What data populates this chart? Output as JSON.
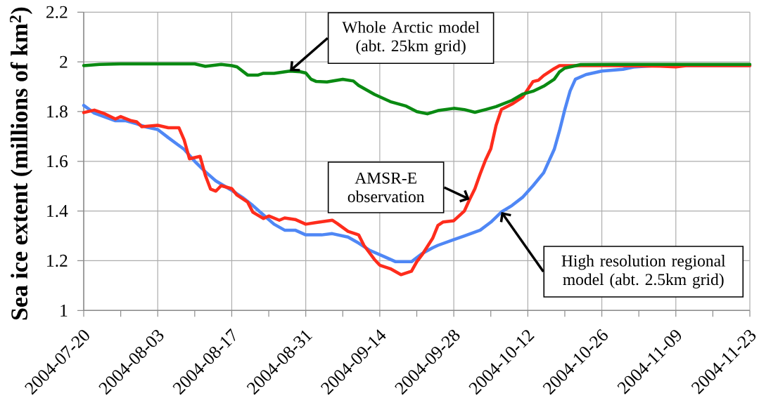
{
  "chart_data": {
    "type": "line",
    "ylabel": "Sea ice extent (millions of km$^{2}$)",
    "xlim": [
      "2004-07-20",
      "2004-11-23"
    ],
    "xticks": [
      "2004-07-20",
      {
        "value": "2004-07-27",
        "label": null
      },
      "2004-08-03",
      {
        "value": "2004-08-10",
        "label": null
      },
      "2004-08-17",
      {
        "value": "2004-08-24",
        "label": null
      },
      "2004-08-31",
      {
        "value": "2004-09-07",
        "label": null
      },
      "2004-09-14",
      {
        "value": "2004-09-21",
        "label": null
      },
      "2004-09-28",
      {
        "value": "2004-10-05",
        "label": null
      },
      "2004-10-12",
      {
        "value": "2004-10-19",
        "label": null
      },
      "2004-10-26",
      {
        "value": "2004-11-02",
        "label": null
      },
      "2004-11-09",
      {
        "value": "2004-11-16",
        "label": null
      },
      "2004-11-23"
    ],
    "ylim": [
      1,
      2.2
    ],
    "yticks": [
      1,
      1.2,
      1.4,
      1.6,
      1.8,
      2,
      2.2
    ],
    "grid": true,
    "series": [
      {
        "color": "#4f87f5",
        "x": [
          "2004-07-20",
          "2004-07-22",
          "2004-07-24",
          "2004-07-26",
          "2004-07-28",
          "2004-07-30",
          "2004-08-01",
          "2004-08-03",
          "2004-08-05",
          "2004-08-08",
          "2004-08-10",
          "2004-08-12",
          "2004-08-14",
          "2004-08-17",
          "2004-08-19",
          "2004-08-21",
          "2004-08-23",
          "2004-08-25",
          "2004-08-27",
          "2004-08-29",
          "2004-08-31",
          "2004-09-03",
          "2004-09-05",
          "2004-09-08",
          "2004-09-10",
          "2004-09-12",
          "2004-09-15",
          "2004-09-17",
          "2004-09-20",
          "2004-09-22",
          "2004-09-24",
          "2004-09-25",
          "2004-09-28",
          "2004-09-30",
          "2004-10-03",
          "2004-10-05",
          "2004-10-07",
          "2004-10-09",
          "2004-10-11",
          "2004-10-13",
          "2004-10-15",
          "2004-10-17",
          "2004-10-18",
          "2004-10-19",
          "2004-10-20",
          "2004-10-21",
          "2004-10-23",
          "2004-10-26",
          "2004-10-30",
          "2004-11-01",
          "2004-11-05",
          "2004-11-23"
        ],
        "values": [
          1.825,
          1.794,
          1.778,
          1.763,
          1.763,
          1.751,
          1.737,
          1.728,
          1.695,
          1.648,
          1.6,
          1.558,
          1.521,
          1.483,
          1.455,
          1.422,
          1.384,
          1.347,
          1.323,
          1.323,
          1.304,
          1.304,
          1.309,
          1.295,
          1.271,
          1.243,
          1.215,
          1.196,
          1.196,
          1.229,
          1.252,
          1.262,
          1.285,
          1.3,
          1.323,
          1.355,
          1.396,
          1.422,
          1.455,
          1.502,
          1.554,
          1.648,
          1.723,
          1.808,
          1.883,
          1.93,
          1.949,
          1.963,
          1.97,
          1.979,
          1.985,
          1.985
        ]
      },
      {
        "color": "#fe2c1c",
        "x": [
          "2004-07-20",
          "2004-07-22",
          "2004-07-24",
          "2004-07-26",
          "2004-07-27",
          "2004-07-29",
          "2004-07-30",
          "2004-07-31",
          "2004-08-03",
          "2004-08-05",
          "2004-08-07",
          "2004-08-08",
          "2004-08-09",
          "2004-08-11",
          "2004-08-12",
          "2004-08-13",
          "2004-08-14",
          "2004-08-15",
          "2004-08-17",
          "2004-08-18",
          "2004-08-20",
          "2004-08-21",
          "2004-08-23",
          "2004-08-24",
          "2004-08-26",
          "2004-08-27",
          "2004-08-29",
          "2004-08-31",
          "2004-09-02",
          "2004-09-05",
          "2004-09-06",
          "2004-09-08",
          "2004-09-10",
          "2004-09-11",
          "2004-09-13",
          "2004-09-14",
          "2004-09-16",
          "2004-09-18",
          "2004-09-20",
          "2004-09-21",
          "2004-09-22",
          "2004-09-24",
          "2004-09-25",
          "2004-09-26",
          "2004-09-28",
          "2004-09-30",
          "2004-10-01",
          "2004-10-02",
          "2004-10-03",
          "2004-10-04",
          "2004-10-05",
          "2004-10-06",
          "2004-10-07",
          "2004-10-09",
          "2004-10-11",
          "2004-10-13",
          "2004-10-14",
          "2004-10-15",
          "2004-10-17",
          "2004-10-18",
          "2004-10-28",
          "2004-11-06",
          "2004-11-09",
          "2004-11-11",
          "2004-11-23"
        ],
        "values": [
          1.796,
          1.806,
          1.791,
          1.77,
          1.78,
          1.763,
          1.759,
          1.739,
          1.745,
          1.735,
          1.735,
          1.686,
          1.61,
          1.62,
          1.544,
          1.488,
          1.48,
          1.502,
          1.49,
          1.464,
          1.436,
          1.395,
          1.37,
          1.38,
          1.363,
          1.372,
          1.366,
          1.347,
          1.354,
          1.363,
          1.349,
          1.318,
          1.304,
          1.262,
          1.205,
          1.182,
          1.168,
          1.144,
          1.158,
          1.196,
          1.224,
          1.29,
          1.342,
          1.356,
          1.361,
          1.4,
          1.447,
          1.49,
          1.55,
          1.605,
          1.65,
          1.745,
          1.808,
          1.83,
          1.858,
          1.921,
          1.926,
          1.945,
          1.973,
          1.985,
          1.985,
          1.983,
          1.98,
          1.985,
          1.985
        ]
      },
      {
        "color": "#0a8a12",
        "x": [
          "2004-07-20",
          "2004-07-23",
          "2004-07-27",
          "2004-08-03",
          "2004-08-10",
          "2004-08-12",
          "2004-08-15",
          "2004-08-17",
          "2004-08-18",
          "2004-08-20",
          "2004-08-22",
          "2004-08-23",
          "2004-08-25",
          "2004-08-28",
          "2004-08-30",
          "2004-08-31",
          "2004-09-01",
          "2004-09-02",
          "2004-09-04",
          "2004-09-07",
          "2004-09-09",
          "2004-09-10",
          "2004-09-13",
          "2004-09-16",
          "2004-09-19",
          "2004-09-21",
          "2004-09-23",
          "2004-09-25",
          "2004-09-28",
          "2004-09-30",
          "2004-10-02",
          "2004-10-04",
          "2004-10-06",
          "2004-10-09",
          "2004-10-11",
          "2004-10-13",
          "2004-10-15",
          "2004-10-17",
          "2004-10-18",
          "2004-10-19",
          "2004-10-22",
          "2004-10-28",
          "2004-11-07",
          "2004-11-23"
        ],
        "values": [
          1.985,
          1.99,
          1.992,
          1.992,
          1.992,
          1.982,
          1.99,
          1.985,
          1.98,
          1.947,
          1.947,
          1.954,
          1.954,
          1.963,
          1.96,
          1.955,
          1.93,
          1.921,
          1.919,
          1.93,
          1.923,
          1.905,
          1.869,
          1.84,
          1.822,
          1.8,
          1.791,
          1.804,
          1.813,
          1.808,
          1.797,
          1.808,
          1.82,
          1.845,
          1.87,
          1.882,
          1.902,
          1.93,
          1.96,
          1.975,
          1.989,
          1.99,
          1.99,
          1.99
        ]
      }
    ],
    "annotations": [
      {
        "text": "Whole Arctic model (abt. 25km grid)",
        "x": "2004-08-28",
        "y": 1.963
      },
      {
        "text": "AMSR-E observation",
        "x": "2004-10-01",
        "y": 1.447
      },
      {
        "text": "High resolution regional model (abt. 2.5km grid)",
        "x": "2004-10-07",
        "y": 1.396
      }
    ]
  }
}
